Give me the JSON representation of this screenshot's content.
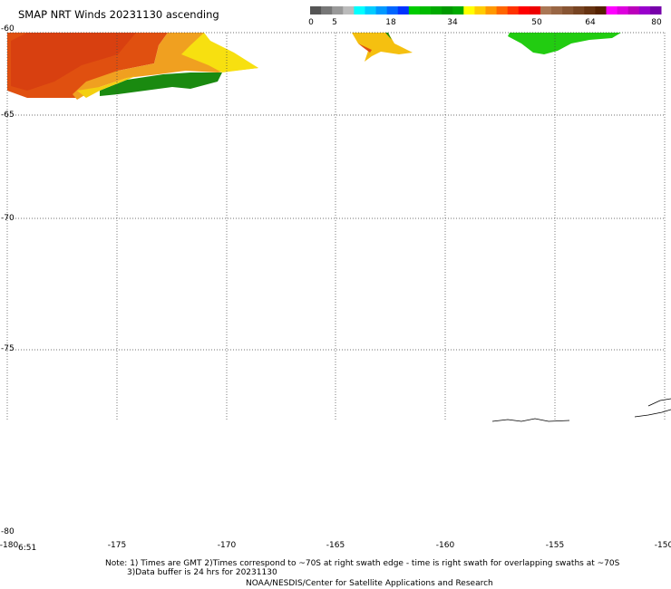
{
  "title": "SMAP NRT Winds 20231130 ascending",
  "colorbar": {
    "tick_labels": [
      "0",
      "5",
      "18",
      "34",
      "50",
      "64",
      "80"
    ],
    "segments": [
      "#555555",
      "#777777",
      "#999999",
      "#bbbbbb",
      "#00ffff",
      "#00ccff",
      "#0099ff",
      "#0066ff",
      "#0033ff",
      "#00cc00",
      "#00bb00",
      "#00aa00",
      "#009900",
      "#00aa00",
      "#ffff00",
      "#ffcc00",
      "#ff9900",
      "#ff6600",
      "#ff3300",
      "#ff0000",
      "#ee0000",
      "#aa7755",
      "#996644",
      "#885533",
      "#774422",
      "#663311",
      "#552200",
      "#ff00ff",
      "#dd00dd",
      "#bb00bb",
      "#9900cc",
      "#7700aa"
    ]
  },
  "map": {
    "lat_labels": [
      "-60",
      "-65",
      "-70",
      "-75",
      "-80"
    ],
    "lon_labels": [
      "-180",
      "-175",
      "-170",
      "-165",
      "-160",
      "-155",
      "-150"
    ],
    "time_label": "6:51"
  },
  "notes": {
    "line1": "Note: 1) Times are GMT 2)Times correspond to ~70S at right swath edge - time is right swath for overlapping swaths at ~70S",
    "line2": "3)Data buffer is 24 hrs for 20231130",
    "line3": "NOAA/NESDIS/Center for Satellite Applications and Research"
  }
}
